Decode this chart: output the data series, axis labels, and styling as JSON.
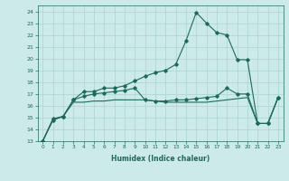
{
  "xlabel": "Humidex (Indice chaleur)",
  "ylabel": "",
  "background_color": "#cceae8",
  "grid_color": "#aad4d0",
  "line_color": "#1a6b5a",
  "xlim": [
    -0.5,
    23.5
  ],
  "ylim": [
    13,
    24.5
  ],
  "xticks": [
    0,
    1,
    2,
    3,
    4,
    5,
    6,
    7,
    8,
    9,
    10,
    11,
    12,
    13,
    14,
    15,
    16,
    17,
    18,
    19,
    20,
    21,
    22,
    23
  ],
  "yticks": [
    13,
    14,
    15,
    16,
    17,
    18,
    19,
    20,
    21,
    22,
    23,
    24
  ],
  "series1_x": [
    0,
    1,
    2,
    3,
    4,
    5,
    6,
    7,
    8,
    9,
    10,
    11,
    12,
    13,
    14,
    15,
    16,
    17,
    18,
    19,
    20,
    21,
    22,
    23
  ],
  "series1_y": [
    13.0,
    14.9,
    15.1,
    16.5,
    17.2,
    17.2,
    17.5,
    17.5,
    17.7,
    18.1,
    18.5,
    18.8,
    19.0,
    19.5,
    21.5,
    23.9,
    23.0,
    22.2,
    22.0,
    19.9,
    19.9,
    14.5,
    14.5,
    16.7
  ],
  "series2_x": [
    0,
    1,
    2,
    3,
    4,
    5,
    6,
    7,
    8,
    9,
    10,
    11,
    12,
    13,
    14,
    15,
    16,
    17,
    18,
    19,
    20,
    21,
    22,
    23
  ],
  "series2_y": [
    13.0,
    14.8,
    15.1,
    16.5,
    16.8,
    17.0,
    17.1,
    17.2,
    17.3,
    17.5,
    16.5,
    16.4,
    16.4,
    16.5,
    16.5,
    16.6,
    16.7,
    16.8,
    17.5,
    17.0,
    17.0,
    14.5,
    14.5,
    16.7
  ],
  "series3_x": [
    0,
    1,
    2,
    3,
    4,
    5,
    6,
    7,
    8,
    9,
    10,
    11,
    12,
    13,
    14,
    15,
    16,
    17,
    18,
    19,
    20,
    21,
    22,
    23
  ],
  "series3_y": [
    13.0,
    14.8,
    15.1,
    16.3,
    16.3,
    16.4,
    16.4,
    16.5,
    16.5,
    16.5,
    16.5,
    16.4,
    16.3,
    16.3,
    16.3,
    16.3,
    16.3,
    16.4,
    16.5,
    16.6,
    16.7,
    14.5,
    14.5,
    16.7
  ]
}
